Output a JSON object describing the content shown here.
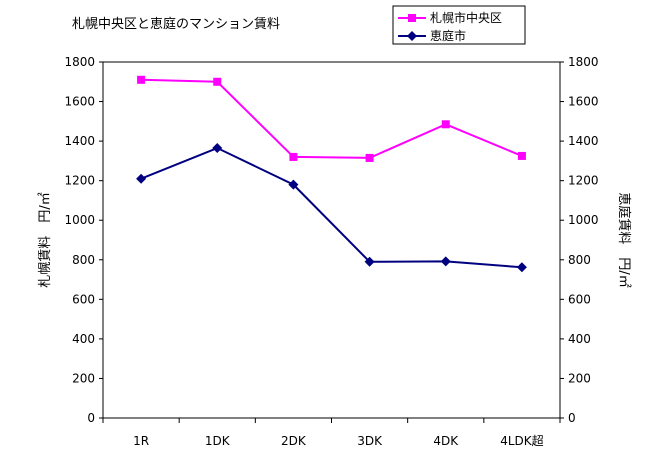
{
  "chart_data": {
    "type": "line",
    "title": "札幌中央区と恵庭のマンション賃料",
    "categories": [
      "1R",
      "1DK",
      "2DK",
      "3DK",
      "4DK",
      "4LDK超"
    ],
    "y_ticks": [
      "0",
      "200",
      "400",
      "600",
      "800",
      "1000",
      "1200",
      "1400",
      "1600",
      "1800"
    ],
    "ylim": [
      0,
      1800
    ],
    "y_left_label": "札幌賃料　円/㎡",
    "y_right_label": "恵庭賃料　円/㎡",
    "grid": false,
    "legend_position": "top-right",
    "series": [
      {
        "name": "札幌市中央区",
        "values": [
          1710,
          1700,
          1320,
          1315,
          1485,
          1325
        ],
        "color": "#ff00ff",
        "marker": "square",
        "axis": "left"
      },
      {
        "name": "恵庭市",
        "values": [
          1210,
          1365,
          1180,
          790,
          792,
          762
        ],
        "color": "#000080",
        "marker": "diamond",
        "axis": "right"
      }
    ]
  }
}
